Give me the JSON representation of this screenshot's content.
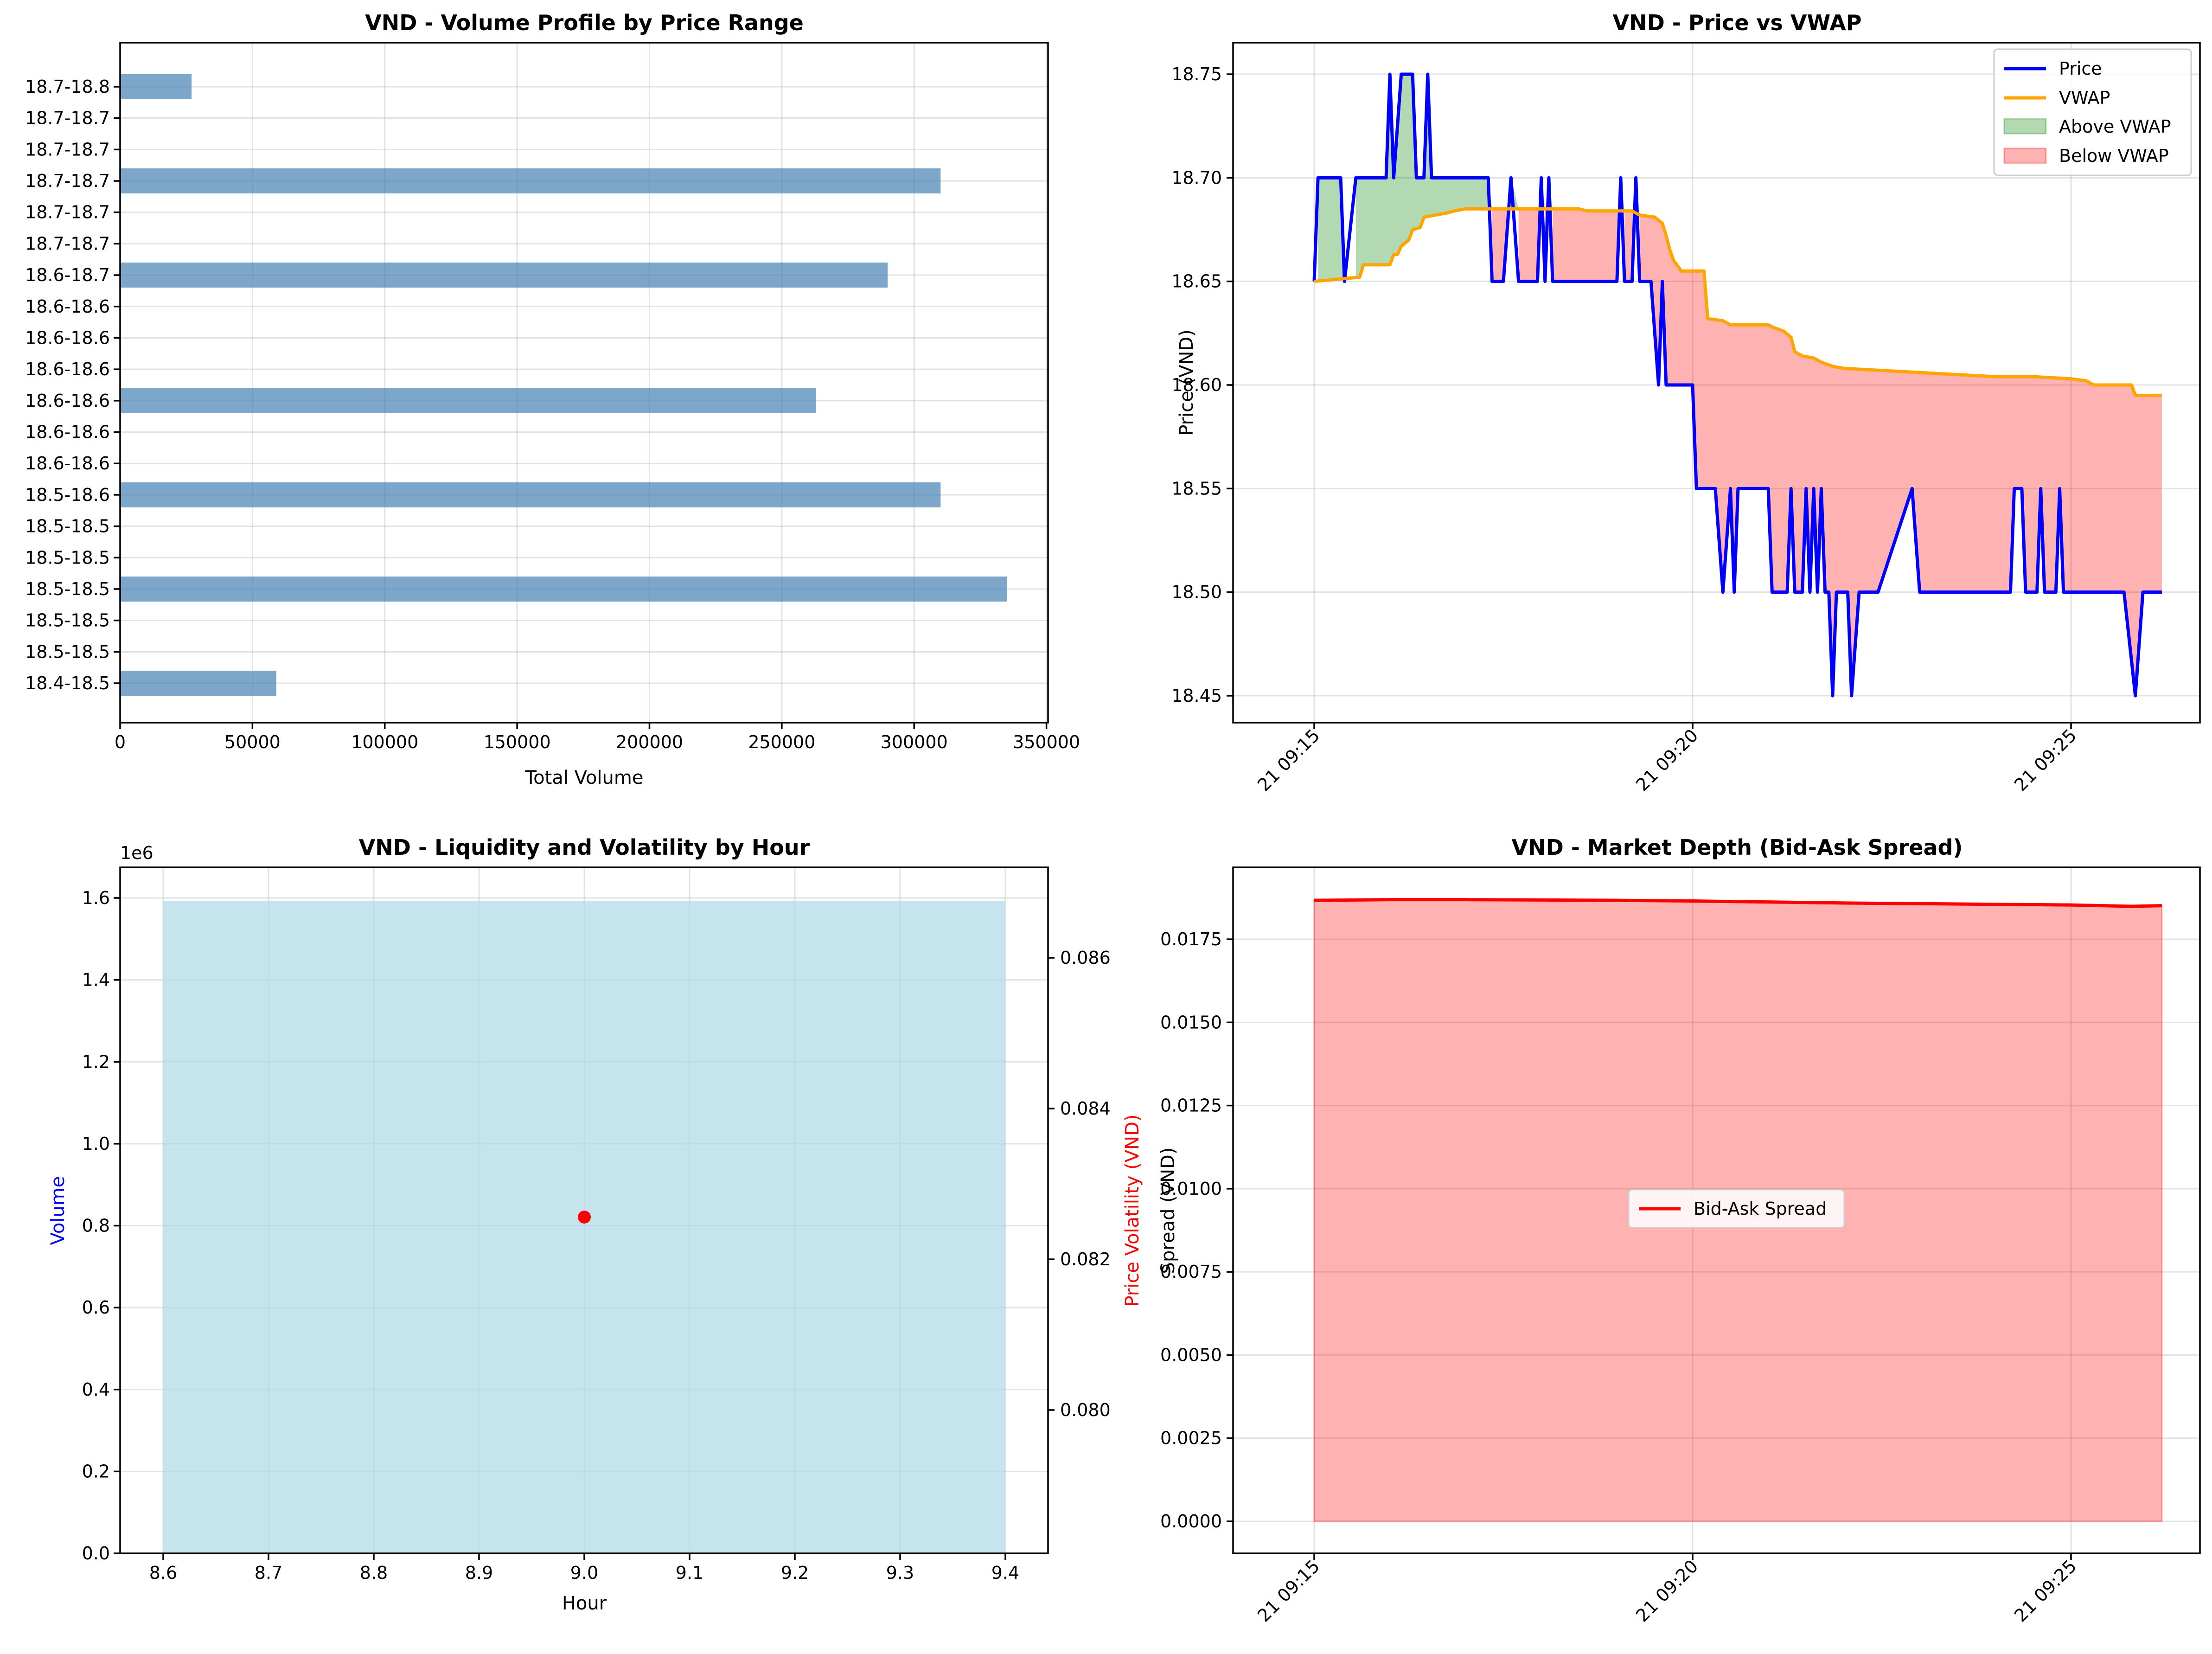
{
  "colors": {
    "bar_steelblue": "#4682b4",
    "price": "#0000ff",
    "vwap": "#ffa500",
    "above_fill": "#008000",
    "below_fill": "#ff0000",
    "volume_bar": "#add8e6",
    "volatility": "#ff0000",
    "spread": "#ff0000"
  },
  "chart_data": [
    {
      "type": "bar",
      "orientation": "horizontal",
      "title": "VND - Volume Profile by Price Range",
      "xlabel": "Total Volume",
      "ylabel": "",
      "xlim": [
        0,
        350000
      ],
      "xticks": [
        "0",
        "50000",
        "100000",
        "150000",
        "200000",
        "250000",
        "300000",
        "350000"
      ],
      "grid": true,
      "categories": [
        "18.4-18.5",
        "18.5-18.5",
        "18.5-18.5",
        "18.5-18.5",
        "18.5-18.5",
        "18.5-18.5",
        "18.5-18.6",
        "18.6-18.6",
        "18.6-18.6",
        "18.6-18.6",
        "18.6-18.6",
        "18.6-18.6",
        "18.6-18.6",
        "18.6-18.7",
        "18.7-18.7",
        "18.7-18.7",
        "18.7-18.7",
        "18.7-18.7",
        "18.7-18.7",
        "18.7-18.8"
      ],
      "values": [
        59000,
        0,
        0,
        335000,
        0,
        0,
        310000,
        0,
        0,
        263000,
        0,
        0,
        0,
        290000,
        0,
        0,
        310000,
        0,
        0,
        27000
      ]
    },
    {
      "type": "line",
      "title": "VND - Price vs VWAP",
      "xlabel": "",
      "ylabel": "Price (VND)",
      "ylim": [
        18.435,
        18.77
      ],
      "xlim_minutes": [
        0,
        11.2
      ],
      "yticks": [
        "18.45",
        "18.50",
        "18.55",
        "18.60",
        "18.65",
        "18.70",
        "18.75"
      ],
      "xticks": [
        "21 09:15",
        "21 09:20",
        "21 09:25"
      ],
      "legend": "top-right",
      "legend_entries": [
        "Price",
        "VWAP",
        "Above VWAP",
        "Below VWAP"
      ],
      "grid": true,
      "series": [
        {
          "name": "Price",
          "points": [
            [
              0.0,
              18.65
            ],
            [
              0.05,
              18.7
            ],
            [
              0.35,
              18.7
            ],
            [
              0.4,
              18.65
            ],
            [
              0.55,
              18.7
            ],
            [
              0.95,
              18.7
            ],
            [
              1.0,
              18.75
            ],
            [
              1.05,
              18.7
            ],
            [
              1.15,
              18.75
            ],
            [
              1.3,
              18.75
            ],
            [
              1.35,
              18.7
            ],
            [
              1.45,
              18.7
            ],
            [
              1.5,
              18.75
            ],
            [
              1.55,
              18.7
            ],
            [
              2.3,
              18.7
            ],
            [
              2.35,
              18.65
            ],
            [
              2.5,
              18.65
            ],
            [
              2.6,
              18.7
            ],
            [
              2.7,
              18.65
            ],
            [
              2.95,
              18.65
            ],
            [
              3.0,
              18.7
            ],
            [
              3.05,
              18.65
            ],
            [
              3.1,
              18.7
            ],
            [
              3.15,
              18.65
            ],
            [
              4.0,
              18.65
            ],
            [
              4.05,
              18.7
            ],
            [
              4.1,
              18.65
            ],
            [
              4.2,
              18.65
            ],
            [
              4.25,
              18.7
            ],
            [
              4.3,
              18.65
            ],
            [
              4.45,
              18.65
            ],
            [
              4.55,
              18.6
            ],
            [
              4.6,
              18.65
            ],
            [
              4.65,
              18.6
            ],
            [
              5.0,
              18.6
            ],
            [
              5.05,
              18.55
            ],
            [
              5.3,
              18.55
            ],
            [
              5.4,
              18.5
            ],
            [
              5.5,
              18.55
            ],
            [
              5.55,
              18.5
            ],
            [
              5.6,
              18.55
            ],
            [
              6.0,
              18.55
            ],
            [
              6.05,
              18.5
            ],
            [
              6.25,
              18.5
            ],
            [
              6.3,
              18.55
            ],
            [
              6.35,
              18.5
            ],
            [
              6.45,
              18.5
            ],
            [
              6.5,
              18.55
            ],
            [
              6.55,
              18.5
            ],
            [
              6.6,
              18.55
            ],
            [
              6.65,
              18.5
            ],
            [
              6.7,
              18.55
            ],
            [
              6.75,
              18.5
            ],
            [
              6.8,
              18.5
            ],
            [
              6.85,
              18.45
            ],
            [
              6.9,
              18.5
            ],
            [
              7.05,
              18.5
            ],
            [
              7.1,
              18.45
            ],
            [
              7.2,
              18.5
            ],
            [
              7.45,
              18.5
            ],
            [
              7.9,
              18.55
            ],
            [
              8.0,
              18.5
            ],
            [
              9.2,
              18.5
            ],
            [
              9.25,
              18.55
            ],
            [
              9.35,
              18.55
            ],
            [
              9.4,
              18.5
            ],
            [
              9.55,
              18.5
            ],
            [
              9.6,
              18.55
            ],
            [
              9.65,
              18.5
            ],
            [
              9.8,
              18.5
            ],
            [
              9.85,
              18.55
            ],
            [
              9.9,
              18.5
            ],
            [
              10.7,
              18.5
            ],
            [
              10.85,
              18.45
            ],
            [
              10.95,
              18.5
            ],
            [
              11.2,
              18.5
            ]
          ]
        },
        {
          "name": "VWAP",
          "points": [
            [
              0.0,
              18.65
            ],
            [
              0.6,
              18.652
            ],
            [
              0.65,
              18.658
            ],
            [
              1.0,
              18.658
            ],
            [
              1.05,
              18.663
            ],
            [
              1.1,
              18.663
            ],
            [
              1.15,
              18.667
            ],
            [
              1.25,
              18.67
            ],
            [
              1.3,
              18.675
            ],
            [
              1.4,
              18.676
            ],
            [
              1.45,
              18.681
            ],
            [
              1.6,
              18.682
            ],
            [
              1.75,
              18.683
            ],
            [
              1.85,
              18.684
            ],
            [
              2.0,
              18.685
            ],
            [
              3.5,
              18.685
            ],
            [
              3.6,
              18.684
            ],
            [
              4.2,
              18.684
            ],
            [
              4.3,
              18.682
            ],
            [
              4.5,
              18.681
            ],
            [
              4.6,
              18.678
            ],
            [
              4.65,
              18.672
            ],
            [
              4.7,
              18.665
            ],
            [
              4.75,
              18.66
            ],
            [
              4.85,
              18.655
            ],
            [
              5.15,
              18.655
            ],
            [
              5.2,
              18.632
            ],
            [
              5.4,
              18.631
            ],
            [
              5.5,
              18.629
            ],
            [
              6.0,
              18.629
            ],
            [
              6.05,
              18.628
            ],
            [
              6.2,
              18.626
            ],
            [
              6.3,
              18.623
            ],
            [
              6.35,
              18.616
            ],
            [
              6.45,
              18.614
            ],
            [
              6.6,
              18.613
            ],
            [
              6.7,
              18.611
            ],
            [
              6.85,
              18.609
            ],
            [
              7.0,
              18.608
            ],
            [
              7.5,
              18.607
            ],
            [
              8.0,
              18.606
            ],
            [
              8.5,
              18.605
            ],
            [
              9.0,
              18.604
            ],
            [
              9.5,
              18.604
            ],
            [
              10.0,
              18.603
            ],
            [
              10.2,
              18.602
            ],
            [
              10.3,
              18.6
            ],
            [
              10.8,
              18.6
            ],
            [
              10.85,
              18.595
            ],
            [
              11.2,
              18.595
            ]
          ]
        }
      ]
    },
    {
      "type": "bar",
      "title": "VND - Liquidity and Volatility by Hour",
      "xlabel": "Hour",
      "ylabel": "Volume",
      "ylabel_right": "Price Volatility (VND)",
      "y_offset_label": "1e6",
      "xlim": [
        8.56,
        9.44
      ],
      "ylim": [
        0,
        1.67
      ],
      "ylim_right": [
        0.0783,
        0.087
      ],
      "xticks": [
        "8.6",
        "8.7",
        "8.8",
        "8.9",
        "9.0",
        "9.1",
        "9.2",
        "9.3",
        "9.4"
      ],
      "yticks": [
        "0.0",
        "0.2",
        "0.4",
        "0.6",
        "0.8",
        "1.0",
        "1.2",
        "1.4",
        "1.6"
      ],
      "yticks_right": [
        "0.080",
        "0.082",
        "0.084",
        "0.086"
      ],
      "grid": true,
      "categories": [
        9.0
      ],
      "series": [
        {
          "name": "Volume",
          "values": [
            1.593
          ],
          "bar_width_hours": 0.8
        },
        {
          "name": "Price Volatility (VND)",
          "values": [
            0.08256
          ]
        }
      ]
    },
    {
      "type": "area",
      "title": "VND - Market Depth (Bid-Ask Spread)",
      "xlabel": "",
      "ylabel": "Spread (VND)",
      "ylim": [
        -0.00095,
        0.01965
      ],
      "xlim_minutes": [
        0,
        11.2
      ],
      "yticks": [
        "0.0000",
        "0.0025",
        "0.0050",
        "0.0075",
        "0.0100",
        "0.0125",
        "0.0150",
        "0.0175"
      ],
      "xticks": [
        "21 09:15",
        "21 09:20",
        "21 09:25"
      ],
      "legend": "center",
      "legend_entries": [
        "Bid-Ask Spread"
      ],
      "grid": true,
      "series": [
        {
          "name": "Bid-Ask Spread",
          "points": [
            [
              0.0,
              0.01867
            ],
            [
              1.0,
              0.01869
            ],
            [
              2.0,
              0.01869
            ],
            [
              3.0,
              0.01868
            ],
            [
              4.0,
              0.01867
            ],
            [
              5.0,
              0.01865
            ],
            [
              6.0,
              0.01862
            ],
            [
              7.0,
              0.01859
            ],
            [
              8.0,
              0.01857
            ],
            [
              9.0,
              0.01855
            ],
            [
              10.0,
              0.01853
            ],
            [
              10.8,
              0.01849
            ],
            [
              11.2,
              0.01851
            ]
          ]
        }
      ]
    }
  ]
}
